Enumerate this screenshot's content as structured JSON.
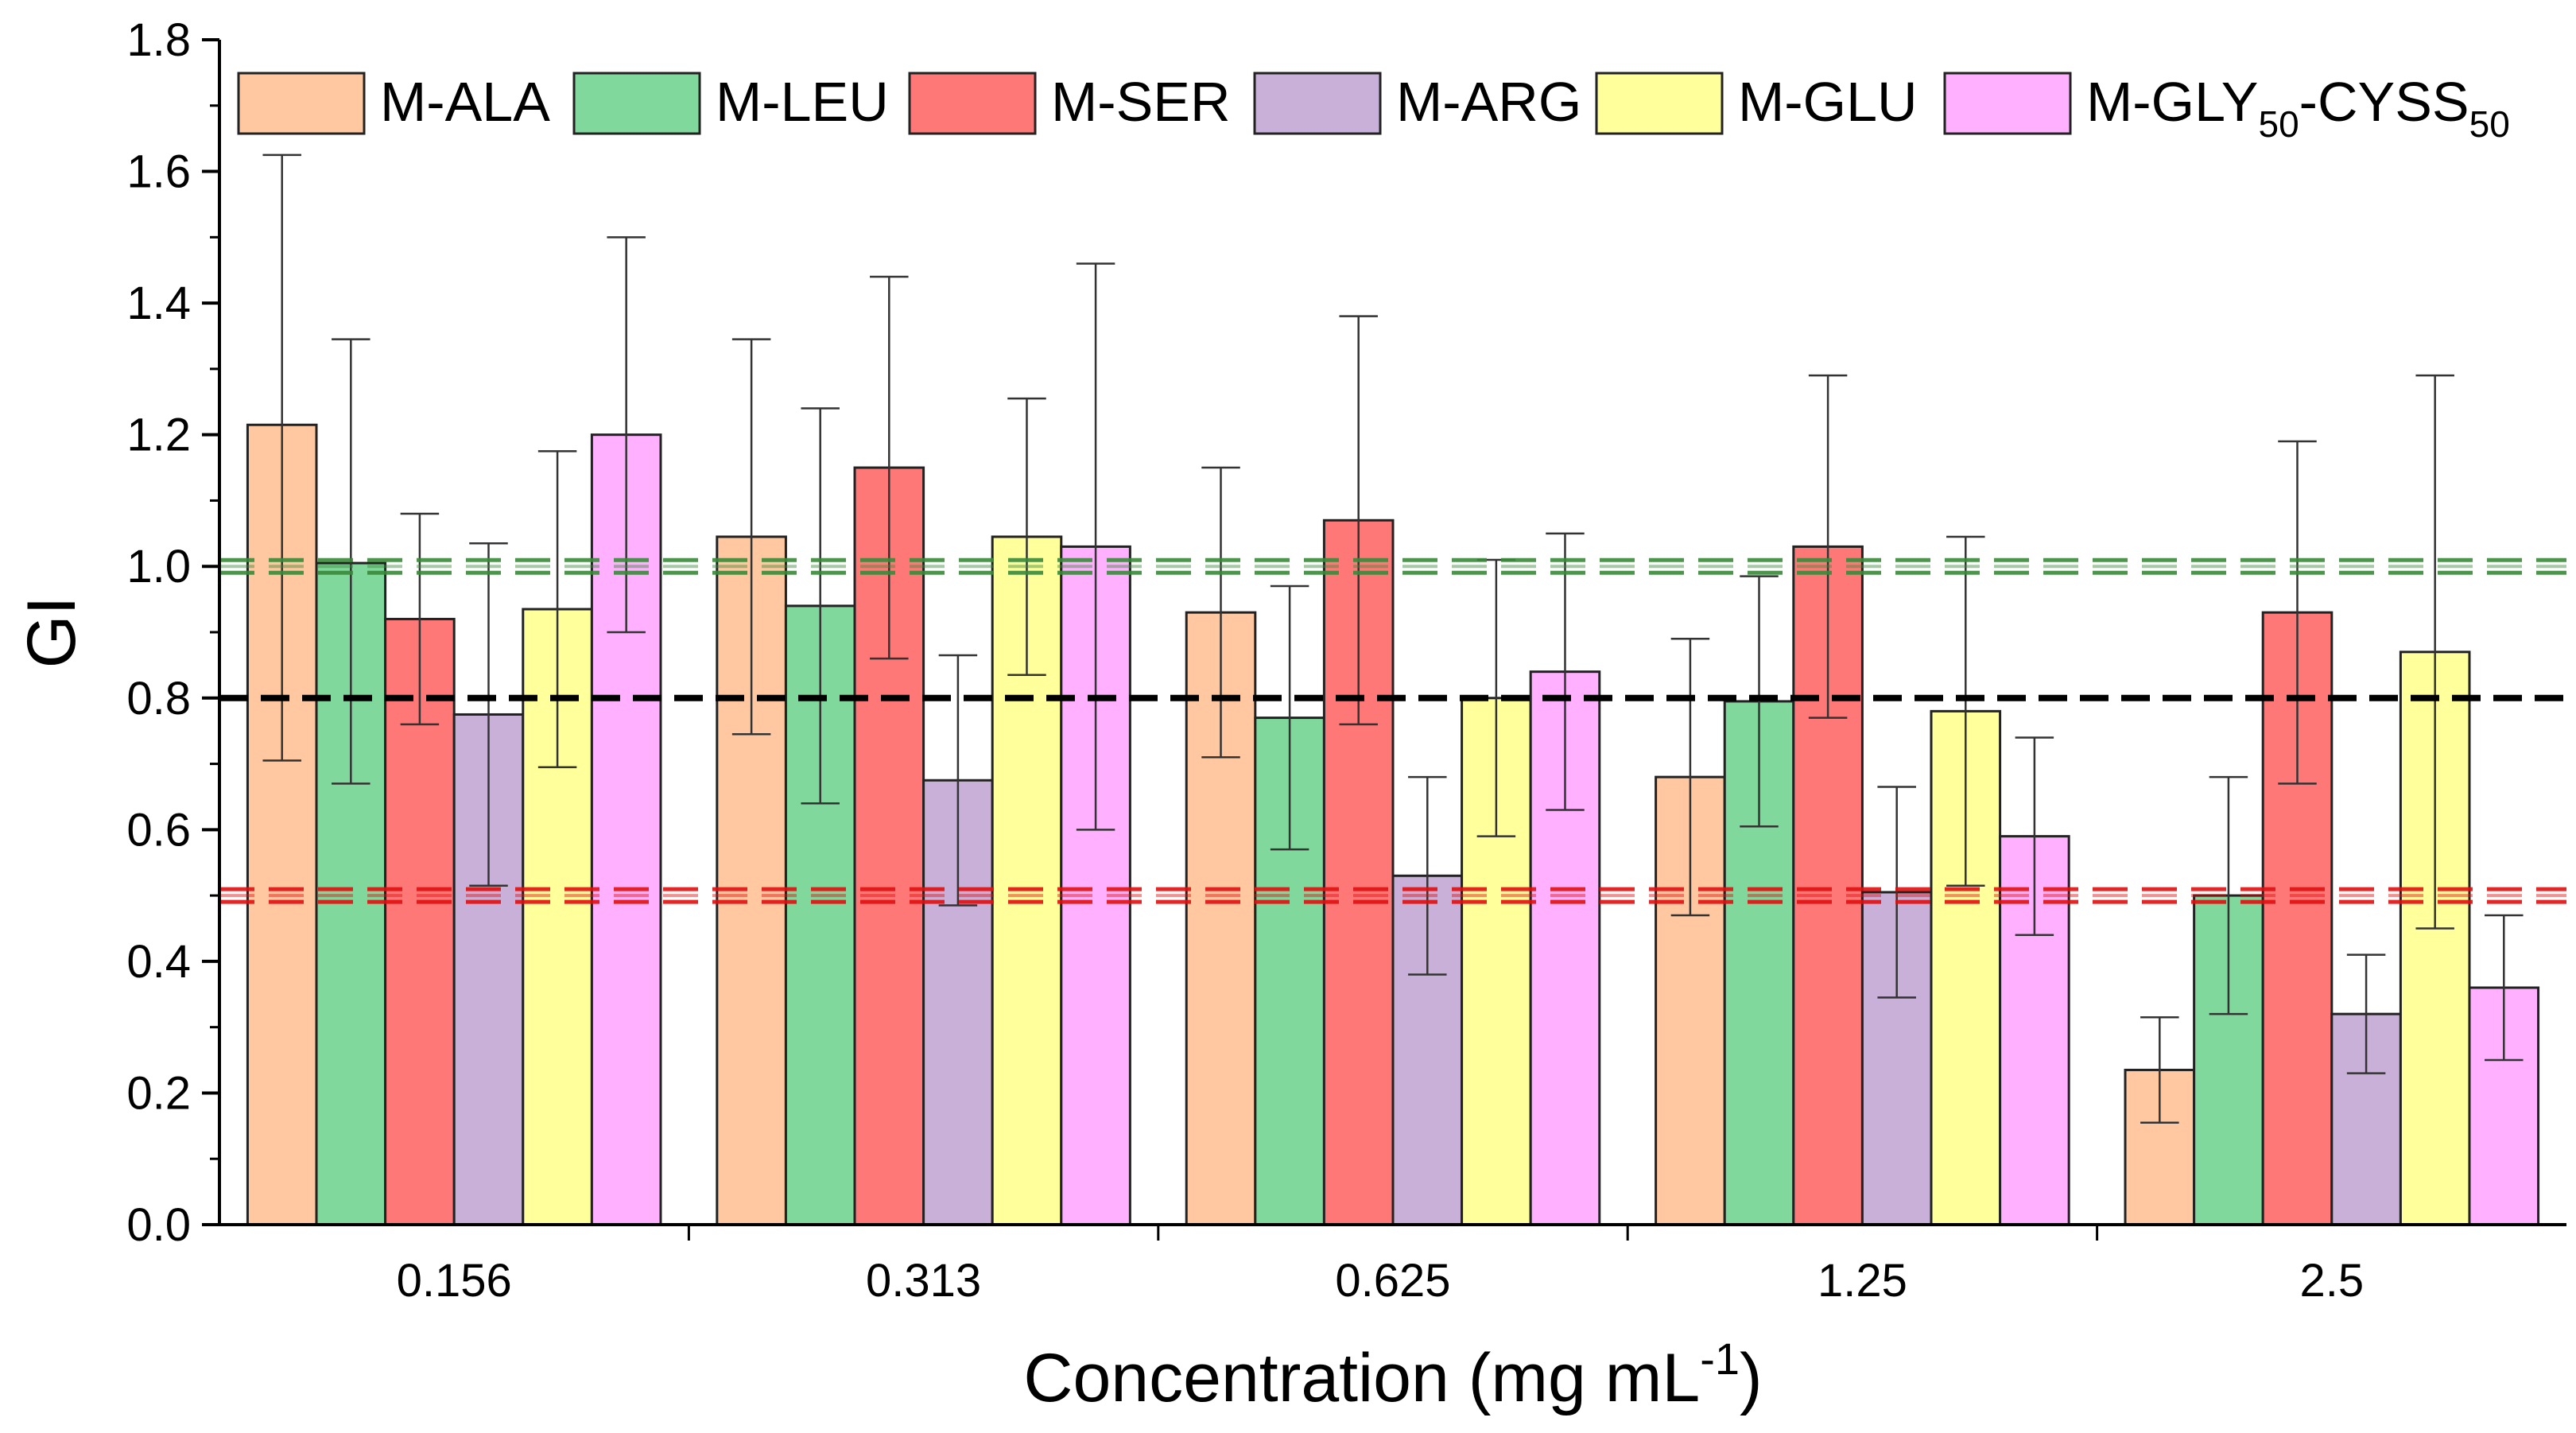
{
  "chart_data": {
    "type": "bar",
    "xlabel": "Concentration (mg mL",
    "xlabel_superscript": "-1",
    "xlabel_close": ")",
    "ylabel": "GI",
    "ylim": [
      0,
      1.8
    ],
    "yticks": [
      "0.0",
      "0.2",
      "0.4",
      "0.6",
      "0.8",
      "1.0",
      "1.2",
      "1.4",
      "1.6",
      "1.8"
    ],
    "ytick_values": [
      0,
      0.2,
      0.4,
      0.6,
      0.8,
      1.0,
      1.2,
      1.4,
      1.6,
      1.8
    ],
    "categories": [
      "0.156",
      "0.313",
      "0.625",
      "1.25",
      "2.5"
    ],
    "legend_position": "top",
    "series": [
      {
        "name": "M-ALA",
        "legend": {
          "base": "M-ALA"
        },
        "color": "#FFC8A0",
        "values": [
          1.215,
          1.045,
          0.93,
          0.68,
          0.235
        ],
        "errors": [
          [
            0.705,
            1.625
          ],
          [
            0.745,
            1.345
          ],
          [
            0.71,
            1.15
          ],
          [
            0.47,
            0.89
          ],
          [
            0.155,
            0.315
          ]
        ]
      },
      {
        "name": "M-LEU",
        "legend": {
          "base": "M-LEU"
        },
        "color": "#80D89C",
        "values": [
          1.005,
          0.94,
          0.77,
          0.795,
          0.5
        ],
        "errors": [
          [
            0.67,
            1.345
          ],
          [
            0.64,
            1.24
          ],
          [
            0.57,
            0.97
          ],
          [
            0.605,
            0.985
          ],
          [
            0.32,
            0.68
          ]
        ]
      },
      {
        "name": "M-SER",
        "legend": {
          "base": "M-SER"
        },
        "color": "#FF7878",
        "values": [
          0.92,
          1.15,
          1.07,
          1.03,
          0.93
        ],
        "errors": [
          [
            0.76,
            1.08
          ],
          [
            0.86,
            1.44
          ],
          [
            0.76,
            1.38
          ],
          [
            0.77,
            1.29
          ],
          [
            0.67,
            1.19
          ]
        ]
      },
      {
        "name": "M-ARG",
        "legend": {
          "base": "M-ARG"
        },
        "color": "#C8B0D8",
        "values": [
          0.775,
          0.675,
          0.53,
          0.505,
          0.32
        ],
        "errors": [
          [
            0.515,
            1.035
          ],
          [
            0.485,
            0.865
          ],
          [
            0.38,
            0.68
          ],
          [
            0.345,
            0.665
          ],
          [
            0.23,
            0.41
          ]
        ]
      },
      {
        "name": "M-GLU",
        "legend": {
          "base": "M-GLU"
        },
        "color": "#FFFF9C",
        "values": [
          0.935,
          1.045,
          0.8,
          0.78,
          0.87
        ],
        "errors": [
          [
            0.695,
            1.175
          ],
          [
            0.835,
            1.255
          ],
          [
            0.59,
            1.01
          ],
          [
            0.515,
            1.045
          ],
          [
            0.45,
            1.29
          ]
        ]
      },
      {
        "name": "M-GLY50-CYSS50",
        "legend": {
          "base": "M-GLY",
          "sub1": "50",
          "mid": "-CYSS",
          "sub2": "50"
        },
        "color": "#FFB0FF",
        "values": [
          1.2,
          1.03,
          0.84,
          0.59,
          0.36
        ],
        "errors": [
          [
            0.9,
            1.5
          ],
          [
            0.6,
            1.46
          ],
          [
            0.63,
            1.05
          ],
          [
            0.44,
            0.74
          ],
          [
            0.25,
            0.47
          ]
        ]
      }
    ],
    "reference_lines": [
      {
        "value": 1.0,
        "color": "#3A8A3A",
        "style": "double-dashed"
      },
      {
        "value": 0.8,
        "color": "#000000",
        "style": "dashed"
      },
      {
        "value": 0.5,
        "color": "#E01010",
        "style": "double-dashed"
      }
    ]
  }
}
